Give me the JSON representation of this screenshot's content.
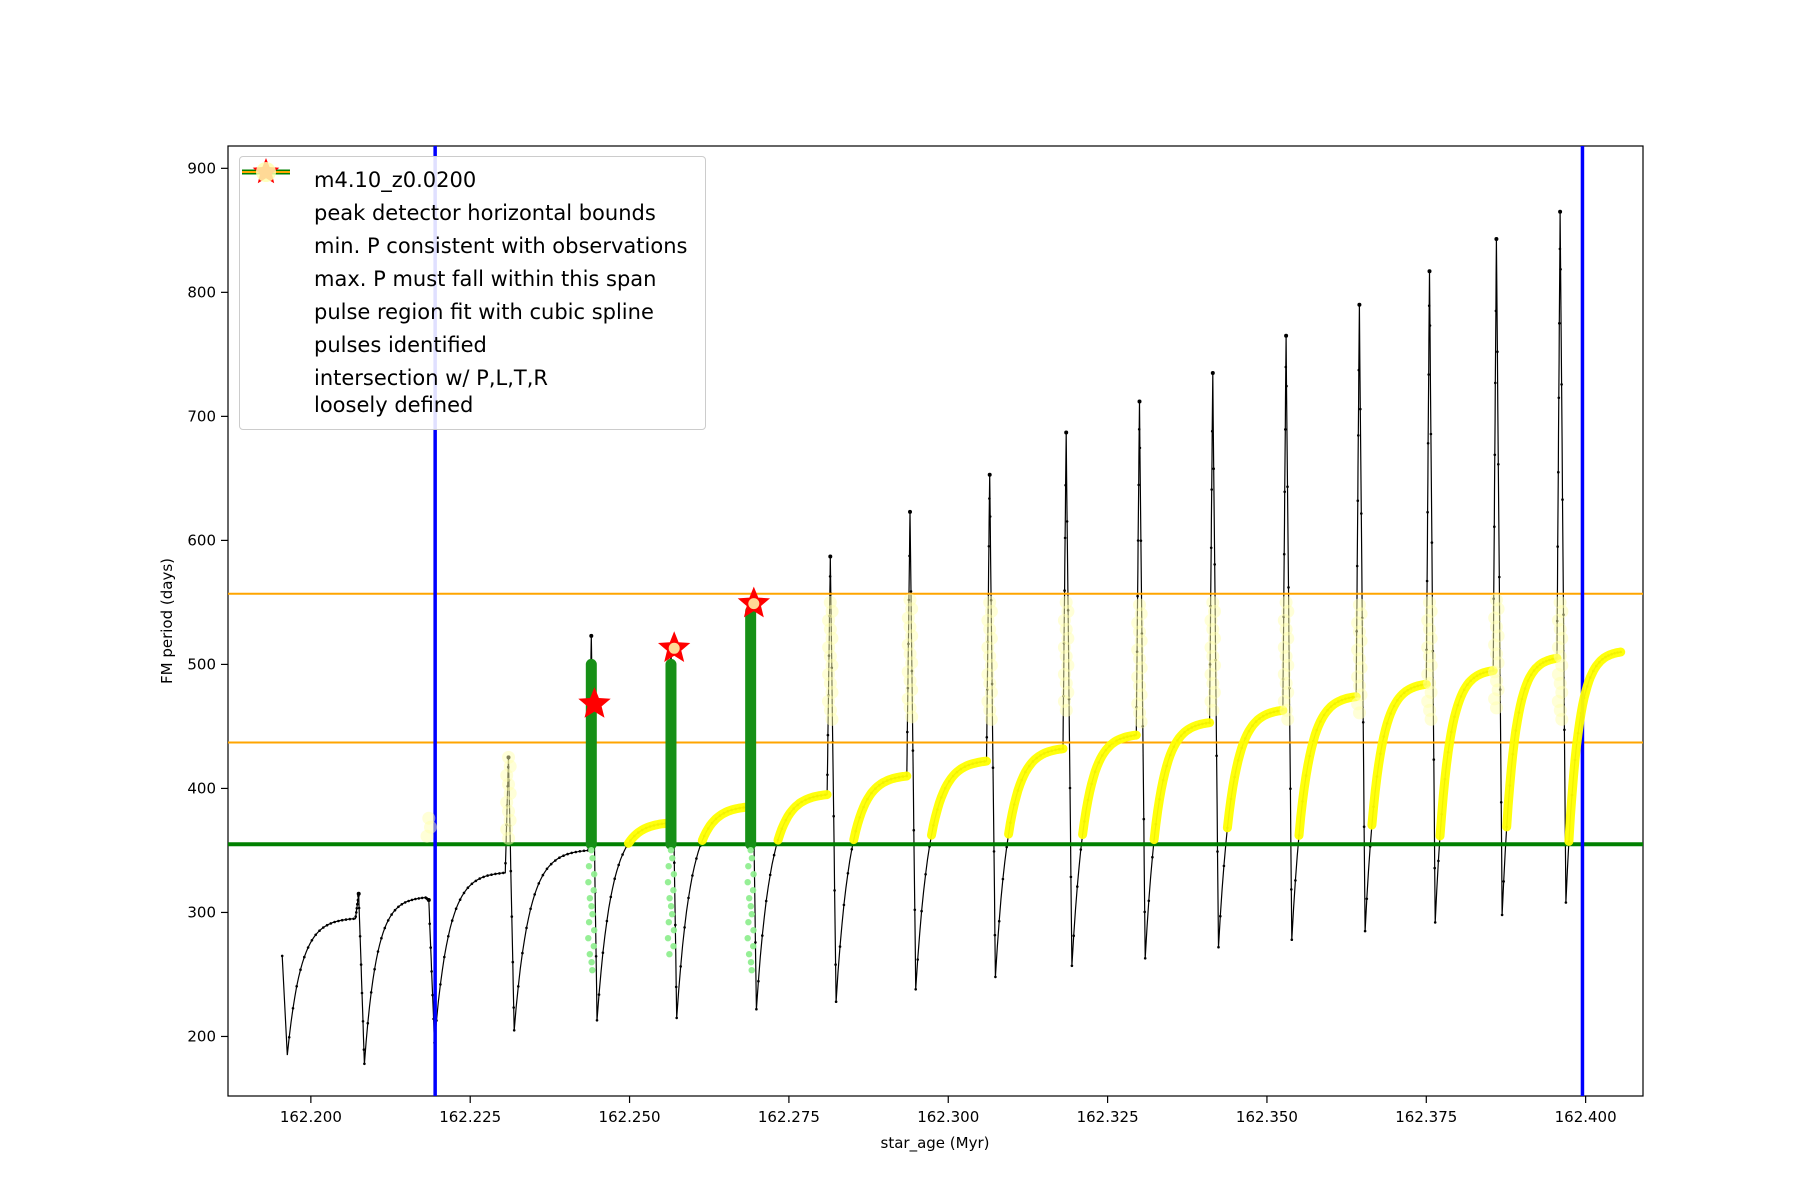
{
  "chart_data": {
    "type": "line",
    "title": "",
    "xlabel": "star_age (Myr)",
    "ylabel": "FM period (days)",
    "xlim": [
      162.187,
      162.409
    ],
    "ylim": [
      152,
      918
    ],
    "xticks": [
      162.2,
      162.225,
      162.25,
      162.275,
      162.3,
      162.325,
      162.35,
      162.375,
      162.4
    ],
    "xtick_labels": [
      "162.200",
      "162.225",
      "162.250",
      "162.275",
      "162.300",
      "162.325",
      "162.350",
      "162.375",
      "162.400"
    ],
    "yticks": [
      200,
      300,
      400,
      500,
      600,
      700,
      800,
      900
    ],
    "ytick_labels": [
      "200",
      "300",
      "400",
      "500",
      "600",
      "700",
      "800",
      "900"
    ],
    "grid": false,
    "legend_position": "upper left",
    "series_label": "m4.10_z0.0200",
    "colors": {
      "black": "#000000",
      "blue": "#0000ff",
      "green": "#008000",
      "dark_green": "#169016",
      "orange": "#ffa500",
      "yellow": "#ffff00",
      "pale_yellow": "#ffffb0",
      "light_green": "#90ee90",
      "red": "#ff0000"
    },
    "hlines": [
      {
        "y": 557,
        "color": "orange",
        "width": 2,
        "name": "max-P-span-upper"
      },
      {
        "y": 437,
        "color": "orange",
        "width": 2,
        "name": "max-P-span-lower"
      },
      {
        "y": 355,
        "color": "green",
        "width": 4,
        "name": "min-P-consistent"
      }
    ],
    "vlines": [
      {
        "x": 162.2195,
        "color": "blue",
        "width": 3.5,
        "name": "peak-detector-left-bound"
      },
      {
        "x": 162.3995,
        "color": "blue",
        "width": 3.5,
        "name": "peak-detector-right-bound"
      }
    ],
    "pulse_threshold": 355,
    "curve_start": {
      "t": 162.1955,
      "v": 265
    },
    "first_trough": {
      "t": 162.1963,
      "v": 185
    },
    "curve_end": {
      "t": 162.4055,
      "v": 510
    },
    "spikes": {
      "t": [
        162.2075,
        162.2185,
        162.231,
        162.244,
        162.2565,
        162.269,
        162.2815,
        162.294,
        162.3065,
        162.3185,
        162.33,
        162.3415,
        162.353,
        162.3645,
        162.3755,
        162.386,
        162.396
      ],
      "peak": [
        315,
        310,
        425,
        523,
        515,
        545,
        587,
        623,
        653,
        687,
        712,
        735,
        765,
        790,
        817,
        843,
        865
      ],
      "shoulder": [
        295,
        312,
        332,
        350,
        372,
        385,
        395,
        410,
        422,
        432,
        443,
        453,
        463,
        474,
        484,
        495,
        505
      ],
      "trough_after": [
        178,
        195,
        205,
        213,
        215,
        222,
        228,
        238,
        248,
        257,
        263,
        272,
        278,
        285,
        292,
        298,
        308
      ]
    },
    "yellow_bands": [
      {
        "x": 162.2185,
        "y1": 360,
        "y2": 376
      },
      {
        "x": 162.231,
        "y1": 357,
        "y2": 425
      },
      {
        "x": 162.2815,
        "y1": 450,
        "y2": 550
      },
      {
        "x": 162.294,
        "y1": 455,
        "y2": 552
      },
      {
        "x": 162.3065,
        "y1": 452,
        "y2": 550
      },
      {
        "x": 162.3185,
        "y1": 458,
        "y2": 550
      },
      {
        "x": 162.33,
        "y1": 452,
        "y2": 548
      },
      {
        "x": 162.3415,
        "y1": 458,
        "y2": 550
      },
      {
        "x": 162.353,
        "y1": 452,
        "y2": 550
      },
      {
        "x": 162.3645,
        "y1": 458,
        "y2": 548
      },
      {
        "x": 162.3755,
        "y1": 452,
        "y2": 550
      },
      {
        "x": 162.386,
        "y1": 458,
        "y2": 552
      },
      {
        "x": 162.396,
        "y1": 452,
        "y2": 550
      }
    ],
    "green_columns": [
      {
        "x": 162.244,
        "top": 500,
        "bottom": 355,
        "dots_low": 250
      },
      {
        "x": 162.2565,
        "top": 500,
        "bottom": 355,
        "dots_low": 265
      },
      {
        "x": 162.269,
        "top": 543,
        "bottom": 355,
        "dots_low": 250
      }
    ],
    "stars": [
      {
        "x": 162.2445,
        "y": 468
      },
      {
        "x": 162.257,
        "y": 513
      },
      {
        "x": 162.2695,
        "y": 549
      }
    ],
    "star_overlays": [
      {
        "x": 162.257,
        "y": 513
      },
      {
        "x": 162.2695,
        "y": 549
      }
    ],
    "legend": [
      {
        "label": "m4.10_z0.0200",
        "marker": "line-dot",
        "color": "#000000"
      },
      {
        "label": "peak detector horizontal bounds",
        "marker": "thick-line",
        "color": "#0000ff"
      },
      {
        "label": "min. P consistent with observations",
        "marker": "thick-line",
        "color": "#008000"
      },
      {
        "label": "max. P must fall within this span",
        "marker": "line",
        "color": "#ffa500"
      },
      {
        "label": "pulse region fit with cubic spline",
        "marker": "small-dot",
        "color": "#90ee90"
      },
      {
        "label": "pulses identified",
        "marker": "star",
        "color": "#ff0000"
      },
      {
        "label": "intersection w/ P,L,T,R\nloosely defined",
        "marker": "big-dot",
        "color": "#ffffb0"
      }
    ]
  }
}
